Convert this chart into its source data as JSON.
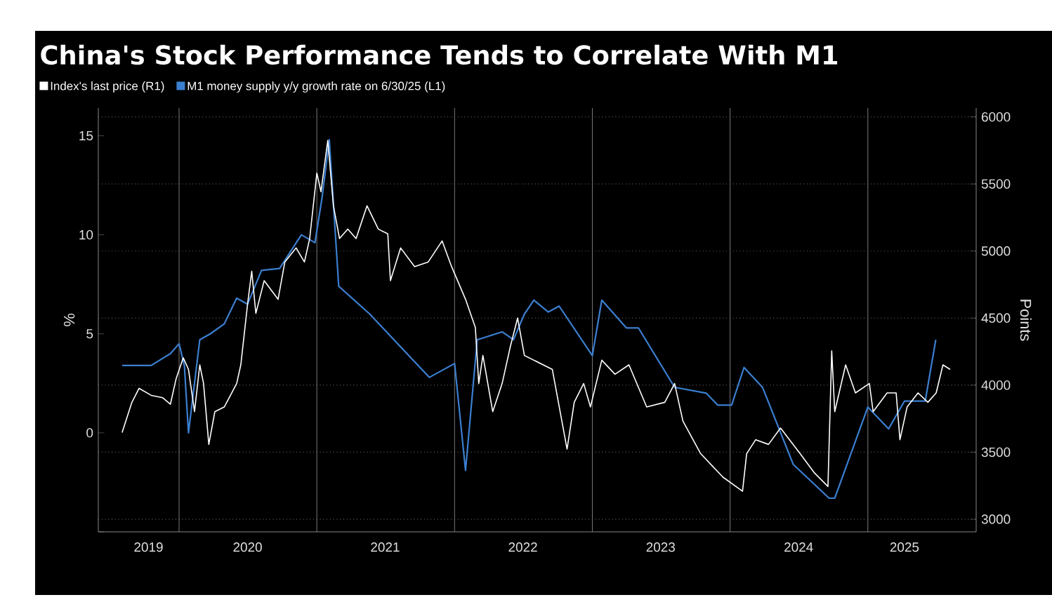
{
  "chart_data": {
    "type": "line",
    "title": "China's Stock Performance Tends to Correlate With M1",
    "ylabel": "%",
    "y2label": "Points",
    "legend": "top left",
    "grid": true,
    "xlim": [
      "2019-06-01",
      "2025-10-15"
    ],
    "xticks": [
      {
        "value": "2019-10-12",
        "label": "2019"
      },
      {
        "value": "2020-07-01",
        "label": "2020"
      },
      {
        "value": "2021-07-01",
        "label": "2021"
      },
      {
        "value": "2022-07-01",
        "label": "2022"
      },
      {
        "value": "2023-07-01",
        "label": "2023"
      },
      {
        "value": "2024-07-01",
        "label": "2024"
      },
      {
        "value": "2025-04-08",
        "label": "2025"
      },
      {
        "value": "2020-01-01",
        "label": null
      },
      {
        "value": "2021-01-01",
        "label": null
      },
      {
        "value": "2022-01-01",
        "label": null
      },
      {
        "value": "2023-01-01",
        "label": null
      },
      {
        "value": "2024-01-01",
        "label": null
      },
      {
        "value": "2025-01-01",
        "label": null
      }
    ],
    "ylim": [
      -5,
      16.4
    ],
    "yticks": [
      {
        "value": -5,
        "label": null
      },
      0,
      5,
      10,
      15
    ],
    "y2lim": [
      2906,
      6066
    ],
    "y2ticks": [
      3000,
      3500,
      4000,
      4500,
      5000,
      5500,
      6000
    ],
    "series": [
      {
        "name": "Index's last price (R1)",
        "color": "#ffffff",
        "axis": "y2",
        "x": [
          "2019-08-03",
          "2019-08-29",
          "2019-09-17",
          "2019-10-19",
          "2019-11-18",
          "2019-12-09",
          "2019-12-24",
          "2020-01-12",
          "2020-01-26",
          "2020-02-11",
          "2020-02-25",
          "2020-03-06",
          "2020-03-20",
          "2020-04-05",
          "2020-04-30",
          "2020-06-02",
          "2020-06-13",
          "2020-07-01",
          "2020-07-12",
          "2020-07-23",
          "2020-08-14",
          "2020-09-20",
          "2020-10-08",
          "2020-11-07",
          "2020-11-29",
          "2020-12-13",
          "2021-01-01",
          "2021-01-12",
          "2021-01-30",
          "2021-02-14",
          "2021-03-02",
          "2021-03-24",
          "2021-04-15",
          "2021-05-14",
          "2021-06-13",
          "2021-07-08",
          "2021-07-15",
          "2021-08-11",
          "2021-09-17",
          "2021-10-23",
          "2021-11-29",
          "2021-12-24",
          "2022-01-30",
          "2022-02-25",
          "2022-03-06",
          "2022-03-17",
          "2022-04-12",
          "2022-05-07",
          "2022-05-29",
          "2022-06-17",
          "2022-07-05",
          "2022-07-30",
          "2022-09-17",
          "2022-10-26",
          "2022-11-14",
          "2022-12-09",
          "2022-12-27",
          "2023-01-26",
          "2023-03-02",
          "2023-04-08",
          "2023-05-25",
          "2023-07-12",
          "2023-08-07",
          "2023-08-29",
          "2023-10-15",
          "2023-12-13",
          "2024-02-03",
          "2024-02-14",
          "2024-03-09",
          "2024-04-12",
          "2024-05-14",
          "2024-07-05",
          "2024-08-11",
          "2024-09-17",
          "2024-09-27",
          "2024-10-05",
          "2024-11-03",
          "2024-11-29",
          "2025-01-05",
          "2025-01-15",
          "2025-02-21",
          "2025-03-17",
          "2025-03-27",
          "2025-04-15",
          "2025-05-14",
          "2025-06-09",
          "2025-07-01",
          "2025-07-19",
          "2025-08-07"
        ],
        "values": [
          3646,
          3872,
          3976,
          3924,
          3907,
          3858,
          4046,
          4204,
          4117,
          3802,
          4151,
          4012,
          3558,
          3802,
          3837,
          4012,
          4151,
          4604,
          4849,
          4535,
          4779,
          4640,
          4918,
          5023,
          4918,
          5093,
          5581,
          5442,
          5825,
          5337,
          5093,
          5163,
          5093,
          5337,
          5163,
          5128,
          4779,
          5023,
          4884,
          4918,
          5075,
          4884,
          4640,
          4430,
          4012,
          4221,
          3802,
          4012,
          4291,
          4500,
          4221,
          4186,
          4117,
          3523,
          3872,
          4012,
          3837,
          4186,
          4081,
          4151,
          3837,
          3872,
          4012,
          3732,
          3489,
          3314,
          3209,
          3489,
          3593,
          3558,
          3680,
          3489,
          3349,
          3244,
          4256,
          3802,
          4151,
          3942,
          4012,
          3802,
          3942,
          3942,
          3593,
          3837,
          3942,
          3872,
          3942,
          4151,
          4117
        ]
      },
      {
        "name": "M1 money supply y/y growth rate on 6/30/25 (L1)",
        "color": "#3b7fd0",
        "x": [
          "2019-08-03",
          "2019-10-19",
          "2019-12-09",
          "2020-01-01",
          "2020-01-15",
          "2020-01-26",
          "2020-02-25",
          "2020-03-24",
          "2020-04-30",
          "2020-06-02",
          "2020-07-01",
          "2020-08-07",
          "2020-09-24",
          "2020-11-21",
          "2020-12-27",
          "2021-01-15",
          "2021-02-03",
          "2021-02-28",
          "2021-05-21",
          "2021-10-26",
          "2022-01-01",
          "2022-01-30",
          "2022-03-02",
          "2022-05-07",
          "2022-06-06",
          "2022-07-05",
          "2022-07-30",
          "2022-09-06",
          "2022-10-05",
          "2023-01-01",
          "2023-01-26",
          "2023-04-01",
          "2023-05-03",
          "2023-08-07",
          "2023-10-30",
          "2023-11-29",
          "2024-01-05",
          "2024-02-07",
          "2024-03-27",
          "2024-06-17",
          "2024-09-20",
          "2024-10-05",
          "2025-01-01",
          "2025-02-25",
          "2025-04-08",
          "2025-06-02",
          "2025-06-30"
        ],
        "values": [
          3.4,
          3.4,
          4.0,
          4.5,
          3.4,
          0,
          4.7,
          5.0,
          5.5,
          6.8,
          6.5,
          8.2,
          8.3,
          10.0,
          9.6,
          11.9,
          14.8,
          7.4,
          6.0,
          2.8,
          3.5,
          -1.9,
          4.7,
          5.1,
          4.7,
          6.0,
          6.7,
          6.1,
          6.4,
          3.9,
          6.7,
          5.3,
          5.3,
          2.3,
          2.0,
          1.4,
          1.4,
          3.3,
          2.3,
          -1.6,
          -3.3,
          -3.3,
          1.3,
          0.2,
          1.6,
          1.6,
          4.7
        ]
      }
    ]
  }
}
